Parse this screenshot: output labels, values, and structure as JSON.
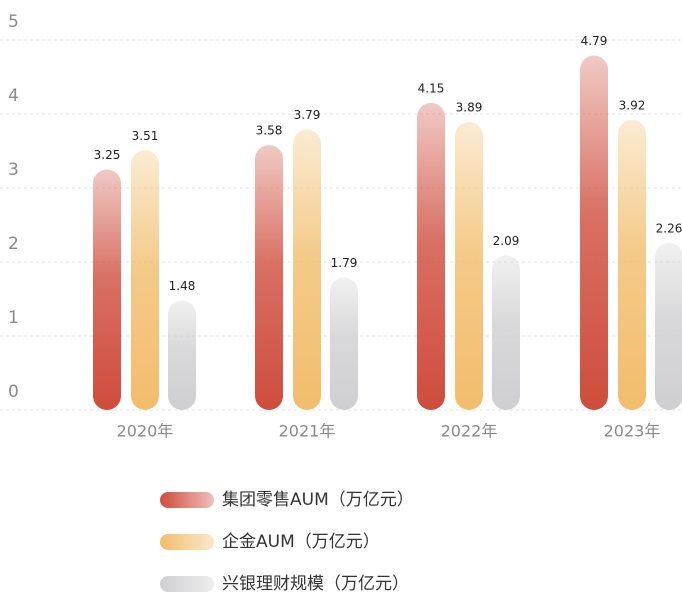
{
  "chart_data": {
    "type": "bar",
    "categories": [
      "2020年",
      "2021年",
      "2022年",
      "2023年"
    ],
    "series": [
      {
        "name": "集团零售AUM（万亿元）",
        "color": "#cf4c3c",
        "values": [
          3.25,
          3.58,
          4.15,
          4.79
        ]
      },
      {
        "name": "企金AUM（万亿元）",
        "color": "#f2bd6c",
        "values": [
          3.51,
          3.79,
          3.89,
          3.92
        ]
      },
      {
        "name": "兴银理财规模（万亿元）",
        "color": "#cfcfd1",
        "values": [
          1.48,
          1.79,
          2.09,
          2.26
        ]
      }
    ],
    "ylim": [
      0,
      5
    ],
    "yticks": [
      0,
      1,
      2,
      3,
      4,
      5
    ],
    "grid": true,
    "legend": "bottom"
  }
}
